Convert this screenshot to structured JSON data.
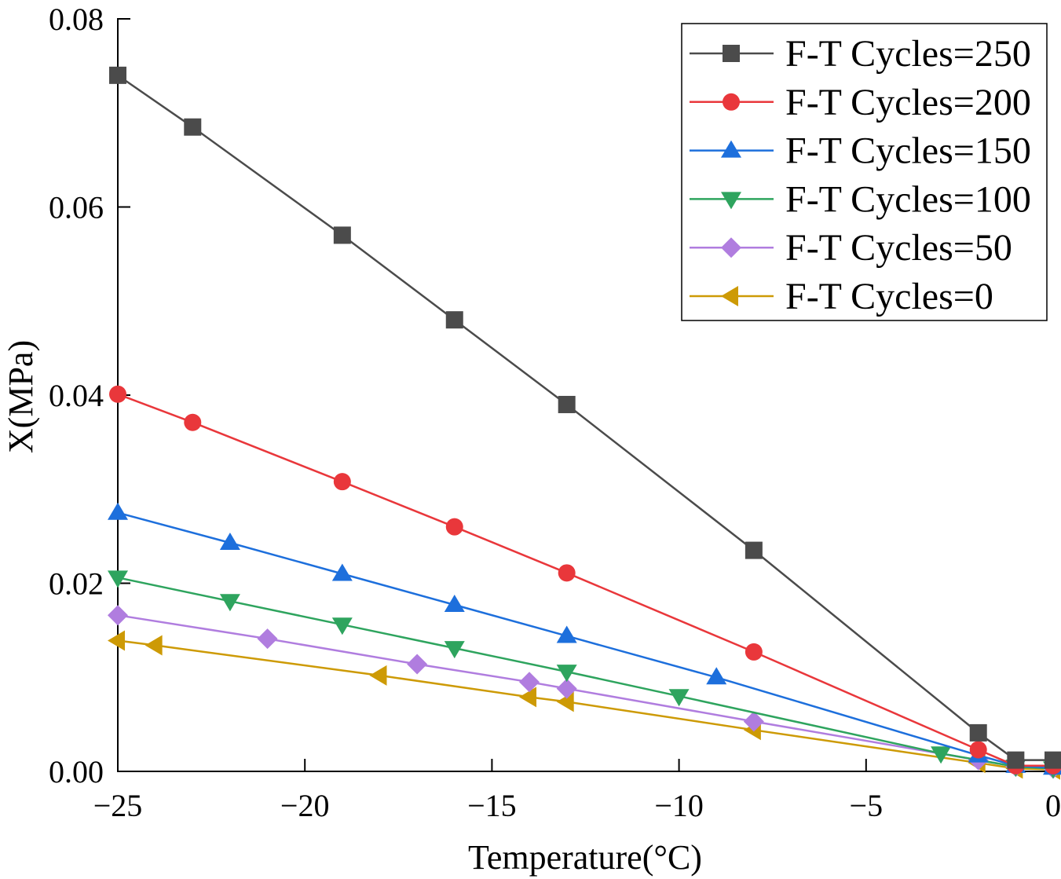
{
  "chart_data": {
    "type": "line",
    "xlabel": "Temperature(°C)",
    "ylabel": "X(MPa)",
    "xlim": [
      -25,
      0
    ],
    "ylim": [
      0,
      0.08
    ],
    "grid": false,
    "legend_position": "top-right",
    "x_ticks": {
      "values": [
        -25,
        -20,
        -15,
        -10,
        -5,
        0
      ],
      "labels": [
        "−25",
        "−20",
        "−15",
        "−10",
        "−5",
        "0"
      ]
    },
    "y_ticks": {
      "values": [
        0,
        0.02,
        0.04,
        0.06,
        0.08
      ],
      "labels": [
        "0.00",
        "0.02",
        "0.04",
        "0.06",
        "0.08"
      ]
    },
    "series": [
      {
        "name": "F-T Cycles=250",
        "color": "#4b4b4b",
        "marker": "square",
        "x": [
          -25,
          -23,
          -19,
          -16,
          -13,
          -8,
          -2,
          -1,
          0
        ],
        "y": [
          0.074,
          0.0685,
          0.057,
          0.048,
          0.039,
          0.0235,
          0.0041,
          0.0012,
          0.0012
        ]
      },
      {
        "name": "F-T Cycles=200",
        "color": "#e9373b",
        "marker": "circle",
        "x": [
          -25,
          -23,
          -19,
          -16,
          -13,
          -8,
          -2,
          -1,
          0
        ],
        "y": [
          0.0401,
          0.0371,
          0.0308,
          0.026,
          0.0211,
          0.0127,
          0.0023,
          0.0006,
          0.0006
        ]
      },
      {
        "name": "F-T Cycles=150",
        "color": "#1d6fdc",
        "marker": "triangle-up",
        "x": [
          -25,
          -22,
          -19,
          -16,
          -13,
          -9,
          -2,
          -1,
          0
        ],
        "y": [
          0.0275,
          0.0243,
          0.021,
          0.0177,
          0.0144,
          0.01,
          0.0017,
          0.0006,
          0.0004
        ]
      },
      {
        "name": "F-T Cycles=100",
        "color": "#2ea45e",
        "marker": "triangle-down",
        "x": [
          -25,
          -22,
          -19,
          -16,
          -13,
          -10,
          -3,
          -1,
          0
        ],
        "y": [
          0.0206,
          0.0181,
          0.0156,
          0.0131,
          0.0106,
          0.008,
          0.0019,
          0.0005,
          0.0003
        ]
      },
      {
        "name": "F-T Cycles=50",
        "color": "#b07ddf",
        "marker": "diamond",
        "x": [
          -25,
          -21,
          -17,
          -14,
          -13,
          -8,
          -2,
          -1,
          0
        ],
        "y": [
          0.0166,
          0.0141,
          0.0114,
          0.0095,
          0.0088,
          0.0053,
          0.0012,
          0.0005,
          0.0003
        ]
      },
      {
        "name": "F-T Cycles=0",
        "color": "#cd9a05",
        "marker": "triangle-left",
        "x": [
          -25,
          -24,
          -18,
          -14,
          -13,
          -8,
          -2,
          -1,
          0
        ],
        "y": [
          0.0139,
          0.0134,
          0.0102,
          0.0079,
          0.0074,
          0.0044,
          0.0009,
          0.0003,
          0.0002
        ]
      }
    ]
  }
}
